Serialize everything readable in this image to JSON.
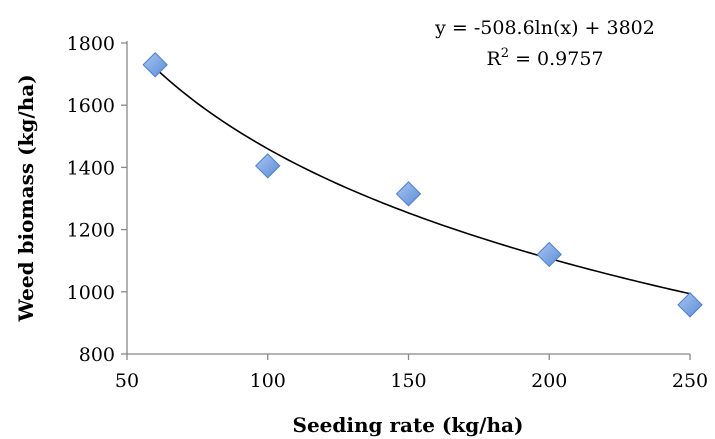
{
  "chart_data": {
    "type": "scatter",
    "xlabel": "Seeding rate (kg/ha)",
    "ylabel": "Weed biomass (kg/ha)",
    "xlim": [
      50,
      250
    ],
    "ylim": [
      800,
      1800
    ],
    "xticks": [
      50,
      100,
      150,
      200,
      250
    ],
    "yticks": [
      800,
      1000,
      1200,
      1400,
      1600,
      1800
    ],
    "grid": false,
    "series": [
      {
        "marker": "diamond",
        "color": "#6f9fe3",
        "x": [
          60,
          100,
          150,
          200,
          250
        ],
        "y": [
          1730,
          1405,
          1315,
          1120,
          958
        ]
      }
    ],
    "trendline": {
      "type": "logarithmic",
      "a": -508.6,
      "b": 3802,
      "x_range": [
        60,
        250
      ],
      "color": "#000000",
      "equation_text": "y = -508.6ln(x) + 3802",
      "r2_prefix": "R",
      "r2_sup": "2",
      "r2_value": " = 0.9757"
    }
  }
}
